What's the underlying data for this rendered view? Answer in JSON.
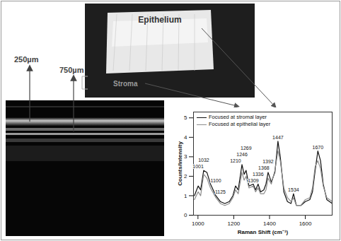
{
  "chart_data": {
    "type": "line",
    "xlabel": "Raman Shift (cm⁻¹)",
    "ylabel": "Counts/Intensity",
    "x": [
      980,
      1001,
      1015,
      1032,
      1050,
      1070,
      1100,
      1125,
      1150,
      1175,
      1195,
      1210,
      1225,
      1246,
      1258,
      1269,
      1285,
      1309,
      1322,
      1336,
      1350,
      1368,
      1380,
      1392,
      1410,
      1430,
      1447,
      1460,
      1480,
      1500,
      1520,
      1534,
      1550,
      1575,
      1600,
      1625,
      1640,
      1655,
      1670,
      1685,
      1700,
      1720,
      1750
    ],
    "series": [
      {
        "name": "Focused at stromal layer",
        "color": "#111111",
        "values": [
          1.0,
          1.5,
          1.3,
          2.3,
          2.2,
          1.6,
          1.0,
          0.7,
          0.6,
          0.7,
          1.0,
          1.5,
          1.3,
          2.6,
          2.1,
          2.3,
          1.5,
          1.6,
          1.3,
          1.6,
          1.2,
          1.3,
          1.6,
          2.2,
          1.7,
          2.2,
          3.8,
          3.0,
          1.2,
          0.7,
          0.6,
          1.1,
          0.5,
          0.5,
          0.7,
          0.8,
          1.2,
          2.3,
          3.3,
          2.8,
          1.6,
          0.8,
          0.6
        ]
      },
      {
        "name": "Focused at epithelial layer",
        "color": "#8c8c8c",
        "values": [
          0.8,
          1.2,
          1.0,
          2.1,
          1.9,
          1.4,
          0.9,
          0.6,
          0.5,
          0.6,
          0.9,
          1.3,
          1.1,
          2.2,
          1.8,
          2.0,
          1.4,
          1.5,
          1.2,
          1.4,
          1.1,
          1.1,
          1.3,
          1.9,
          1.6,
          2.3,
          3.3,
          2.8,
          1.4,
          0.9,
          0.7,
          0.9,
          0.5,
          0.5,
          0.8,
          0.9,
          1.4,
          2.5,
          2.8,
          2.4,
          1.5,
          0.9,
          0.7
        ]
      }
    ],
    "xlim": [
      975,
      1750
    ],
    "ylim": [
      0,
      5.3
    ],
    "xticks": [
      1000,
      1200,
      1400,
      1600
    ],
    "yticks": [
      0,
      1,
      2,
      3,
      4,
      5
    ],
    "legend": "top-left",
    "annotations": [
      1001,
      1032,
      1100,
      1125,
      1210,
      1246,
      1269,
      1309,
      1336,
      1368,
      1392,
      1447,
      1534,
      1670
    ]
  },
  "photo": {
    "labels": [
      "Epithelium",
      "Stroma"
    ]
  },
  "oct_image": {
    "depth_labels": [
      "250µm",
      "750µm"
    ]
  }
}
